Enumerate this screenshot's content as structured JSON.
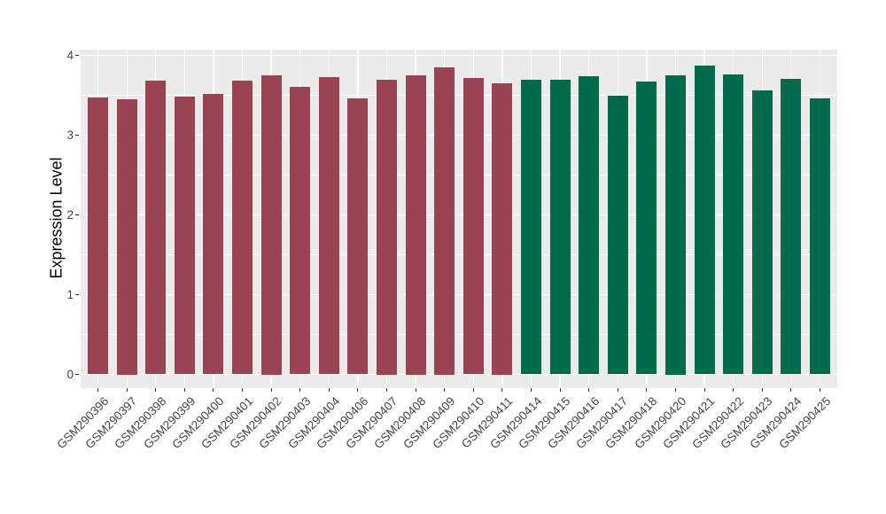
{
  "chart_data": {
    "type": "bar",
    "title": "",
    "xlabel": "",
    "ylabel": "Expression Level",
    "ylim": [
      0,
      4
    ],
    "yticks": [
      0,
      1,
      2,
      3,
      4
    ],
    "y_minor_ticks": [
      0.5,
      1.5,
      2.5,
      3.5
    ],
    "grid": true,
    "legend_position": "none",
    "categories": [
      "GSM290396",
      "GSM290397",
      "GSM290398",
      "GSM290399",
      "GSM290400",
      "GSM290401",
      "GSM290402",
      "GSM290403",
      "GSM290404",
      "GSM290406",
      "GSM290407",
      "GSM290408",
      "GSM290409",
      "GSM290410",
      "GSM290411",
      "GSM290414",
      "GSM290415",
      "GSM290416",
      "GSM290417",
      "GSM290418",
      "GSM290420",
      "GSM290421",
      "GSM290422",
      "GSM290423",
      "GSM290424",
      "GSM290425"
    ],
    "values": [
      3.47,
      3.45,
      3.68,
      3.48,
      3.52,
      3.68,
      3.75,
      3.61,
      3.73,
      3.46,
      3.7,
      3.75,
      3.85,
      3.72,
      3.65,
      3.69,
      3.69,
      3.74,
      3.49,
      3.67,
      3.75,
      3.87,
      3.76,
      3.56,
      3.71,
      3.46
    ],
    "bar_colors": [
      "#9A4353",
      "#9A4353",
      "#9A4353",
      "#9A4353",
      "#9A4353",
      "#9A4353",
      "#9A4353",
      "#9A4353",
      "#9A4353",
      "#9A4353",
      "#9A4353",
      "#9A4353",
      "#9A4353",
      "#9A4353",
      "#9A4353",
      "#006B4C",
      "#006B4C",
      "#006B4C",
      "#006B4C",
      "#006B4C",
      "#006B4C",
      "#006B4C",
      "#006B4C",
      "#006B4C",
      "#006B4C",
      "#006B4C"
    ],
    "colors": {
      "maroon_group": "#9A4353",
      "green_group": "#006B4C",
      "panel_background": "#EBEBEB",
      "gridline": "#FFFFFF",
      "axis_text": "#444444",
      "axis_title": "#000000",
      "tick_mark": "#333333"
    }
  }
}
